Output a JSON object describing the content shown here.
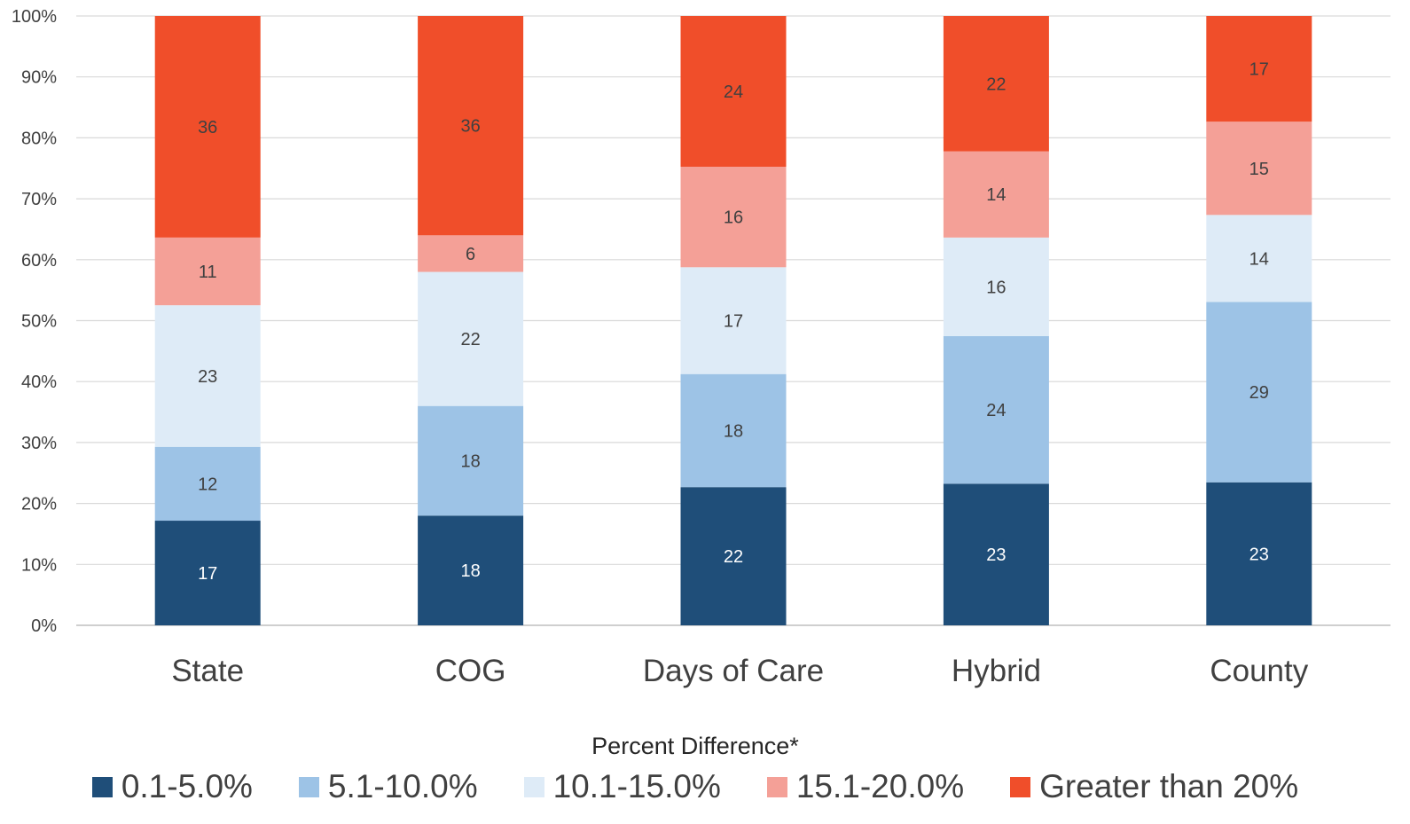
{
  "chart_data": {
    "type": "bar",
    "stacked": true,
    "percent": true,
    "categories": [
      "State",
      "COG",
      "Days of Care",
      "Hybrid",
      "County"
    ],
    "series": [
      {
        "name": "0.1-5.0%",
        "color": "#1f4e79",
        "values": [
          17,
          18,
          22,
          23,
          23
        ]
      },
      {
        "name": "5.1-10.0%",
        "color": "#9dc3e6",
        "values": [
          12,
          18,
          18,
          24,
          29
        ]
      },
      {
        "name": "10.1-15.0%",
        "color": "#deebf7",
        "values": [
          23,
          22,
          17,
          16,
          14
        ]
      },
      {
        "name": "15.1-20.0%",
        "color": "#f4a097",
        "values": [
          11,
          6,
          16,
          14,
          15
        ]
      },
      {
        "name": "Greater than 20%",
        "color": "#f04e2a",
        "values": [
          36,
          36,
          24,
          22,
          17
        ]
      }
    ],
    "ylim": [
      0,
      100
    ],
    "yticks": [
      "0%",
      "10%",
      "20%",
      "30%",
      "40%",
      "50%",
      "60%",
      "70%",
      "80%",
      "90%",
      "100%"
    ],
    "grid": true,
    "legend_title": "Percent Difference*",
    "legend_position": "bottom"
  }
}
